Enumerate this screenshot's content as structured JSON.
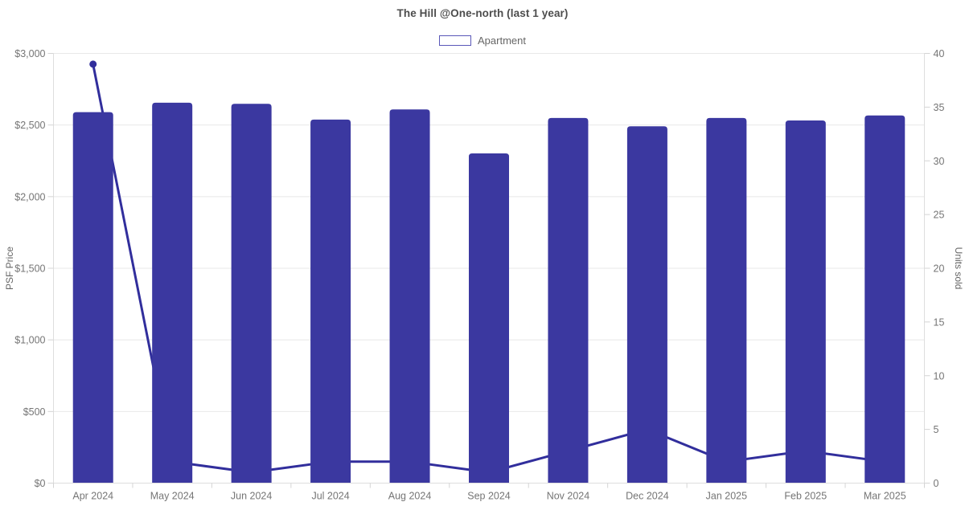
{
  "chart_data": {
    "type": "bar",
    "title": "The Hill @One-north (last 1 year)",
    "categories": [
      "Apr 2024",
      "May 2024",
      "Jun 2024",
      "Jul 2024",
      "Aug 2024",
      "Sep 2024",
      "Nov 2024",
      "Dec 2024",
      "Jan 2025",
      "Feb 2025",
      "Mar 2025"
    ],
    "series": [
      {
        "name": "Apartment",
        "type": "bar",
        "axis": "left",
        "color": "#3b38a0",
        "values": [
          2590,
          2656,
          2648,
          2538,
          2609,
          2302,
          2549,
          2491,
          2549,
          2532,
          2567
        ]
      },
      {
        "name": "Units sold",
        "type": "line",
        "axis": "right",
        "color": "#312e9c",
        "marker_on_first_point": true,
        "values": [
          39,
          2,
          1,
          2,
          2,
          1,
          3,
          5,
          2,
          3,
          2
        ]
      }
    ],
    "xlabel": "",
    "ylabel_left": "PSF Price",
    "ylabel_right": "Units sold",
    "y_left": {
      "min": 0,
      "max": 3000,
      "step": 500,
      "tick_labels": [
        "$0",
        "$500",
        "$1,000",
        "$1,500",
        "$2,000",
        "$2,500",
        "$3,000"
      ]
    },
    "y_right": {
      "min": 0,
      "max": 40,
      "step": 5,
      "tick_labels": [
        "0",
        "5",
        "10",
        "15",
        "20",
        "25",
        "30",
        "35",
        "40"
      ]
    },
    "legend_position": "top",
    "grid": "horizontal"
  },
  "legend": {
    "items": [
      {
        "label": "Apartment",
        "color": "#3b38a0"
      }
    ]
  },
  "colors": {
    "bar": "#3b38a0",
    "line": "#312e9c",
    "grid": "#e8e8e8",
    "axis_border": "#dedede",
    "tick_mark": "#d4d4d4",
    "tick_text": "#757575",
    "title_text": "#4d4d4d",
    "legend_text": "#666666",
    "axis_title_text": "#666666",
    "background": "#ffffff"
  }
}
